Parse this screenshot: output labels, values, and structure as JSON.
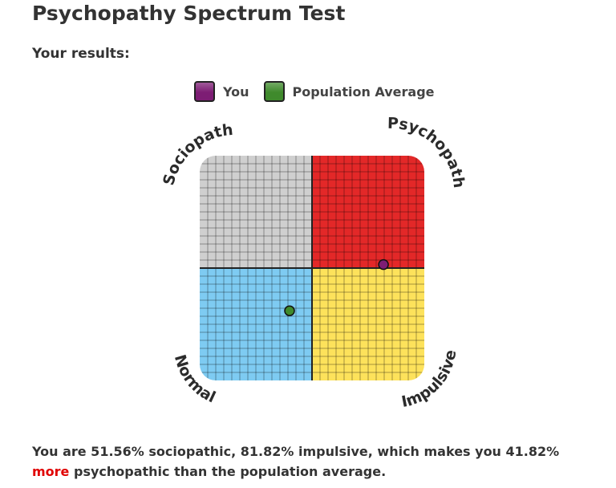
{
  "page": {
    "title": "Psychopathy Spectrum Test",
    "results_label": "Your results:"
  },
  "summary": {
    "prefix": "You are 51.56% sociopathic, 81.82% impulsive, which makes you 41.82%",
    "emphasis": "more",
    "suffix": "psychopathic than the population average."
  },
  "colors": {
    "you": "#7d1d74",
    "population": "#3f8a2c",
    "sociopath_quadrant": "#cfcfcf",
    "psychopath_quadrant": "#e32828",
    "normal_quadrant": "#7ecbf2",
    "impulsive_quadrant": "#fde25b",
    "highlight": "#e00000"
  },
  "chart_data": {
    "type": "scatter",
    "title": "",
    "x_axis": {
      "min": 0,
      "max": 100,
      "meaning": "impulsive %"
    },
    "y_axis": {
      "min": 0,
      "max": 100,
      "meaning": "sociopathic %"
    },
    "grid": true,
    "quadrants": [
      {
        "label": "Sociopath",
        "position": "top-left"
      },
      {
        "label": "Psychopath",
        "position": "top-right"
      },
      {
        "label": "Normal",
        "position": "bottom-left"
      },
      {
        "label": "Impulsive",
        "position": "bottom-right"
      }
    ],
    "legend": {
      "placement": "top"
    },
    "series": [
      {
        "name": "You",
        "x": 81.82,
        "y": 51.56
      },
      {
        "name": "Population Average",
        "x": 40,
        "y": 31
      }
    ]
  }
}
